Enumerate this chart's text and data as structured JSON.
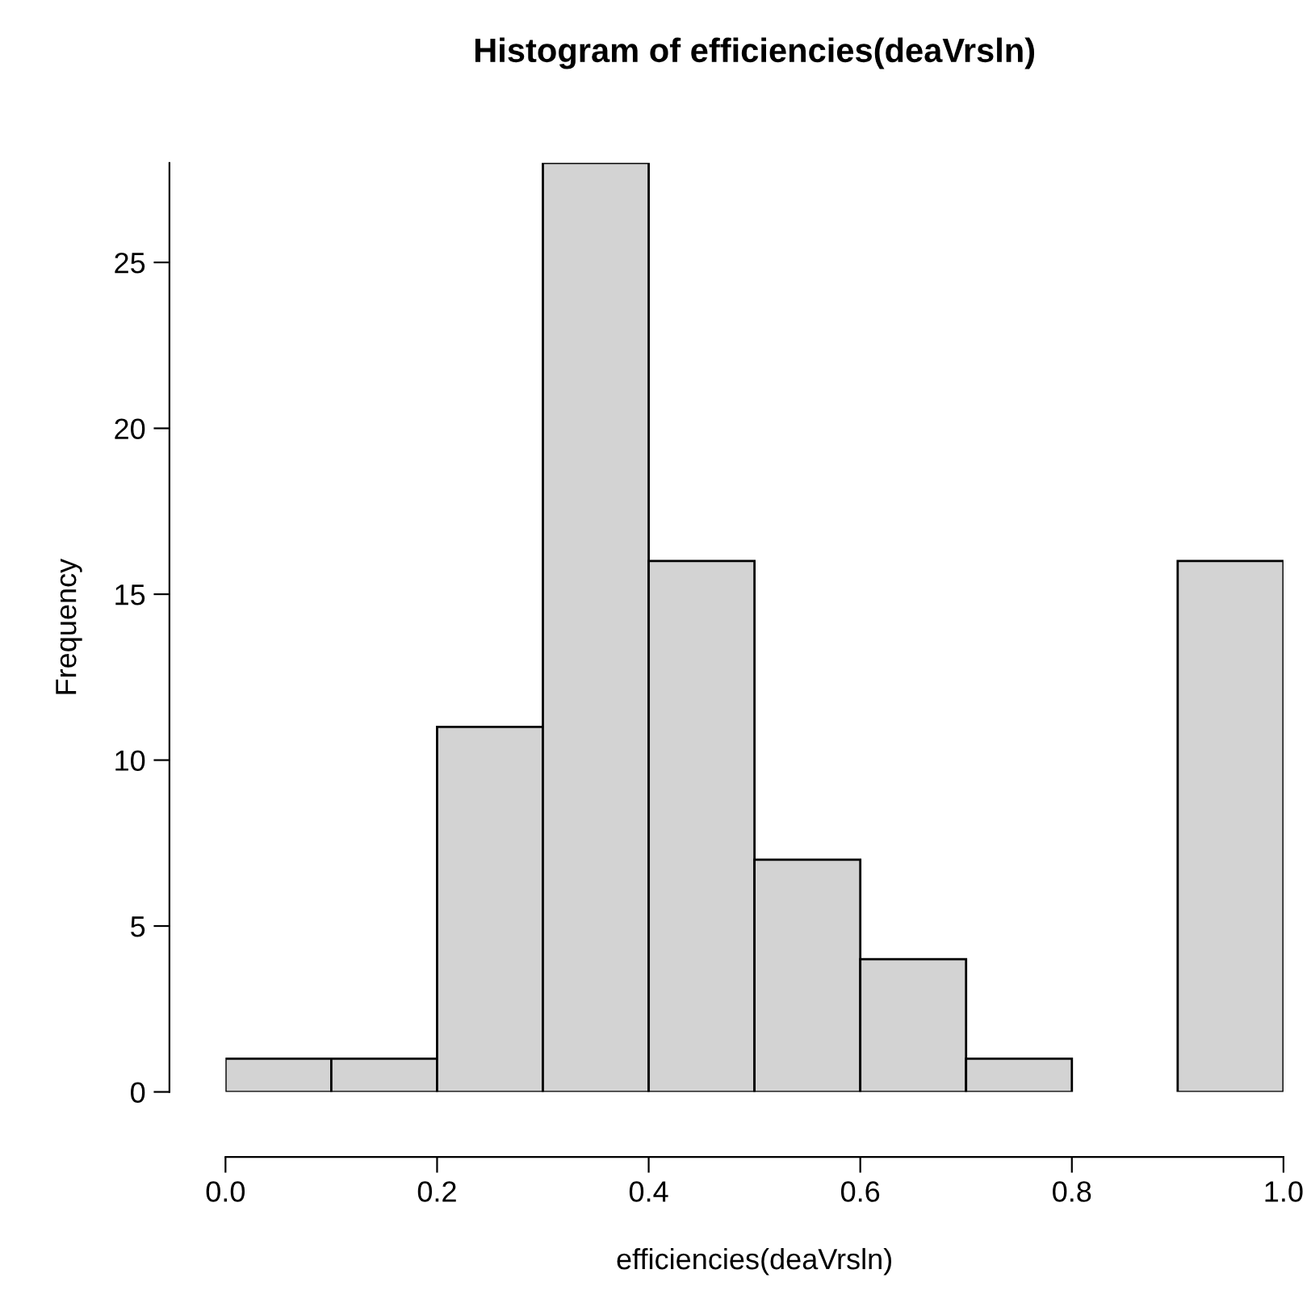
{
  "chart_data": {
    "type": "histogram",
    "title": "Histogram of efficiencies(deaVrsln)",
    "xlabel": "efficiencies(deaVrsln)",
    "ylabel": "Frequency",
    "bins": [
      0.0,
      0.1,
      0.2,
      0.3,
      0.4,
      0.5,
      0.6,
      0.7,
      0.8,
      0.9,
      1.0
    ],
    "values": [
      1,
      1,
      11,
      28,
      16,
      7,
      4,
      1,
      0,
      16
    ],
    "color": "#d3d3d3",
    "xlim": [
      0.0,
      1.0
    ],
    "ylim": [
      0,
      28
    ],
    "xticks": [
      {
        "value": 0.0,
        "label": "0.0"
      },
      0.2,
      0.4,
      0.6,
      0.8,
      {
        "value": 1.0,
        "label": "1.0"
      }
    ],
    "yticks": [
      0,
      5,
      10,
      15,
      20,
      25
    ],
    "grid": false,
    "legend": false
  }
}
